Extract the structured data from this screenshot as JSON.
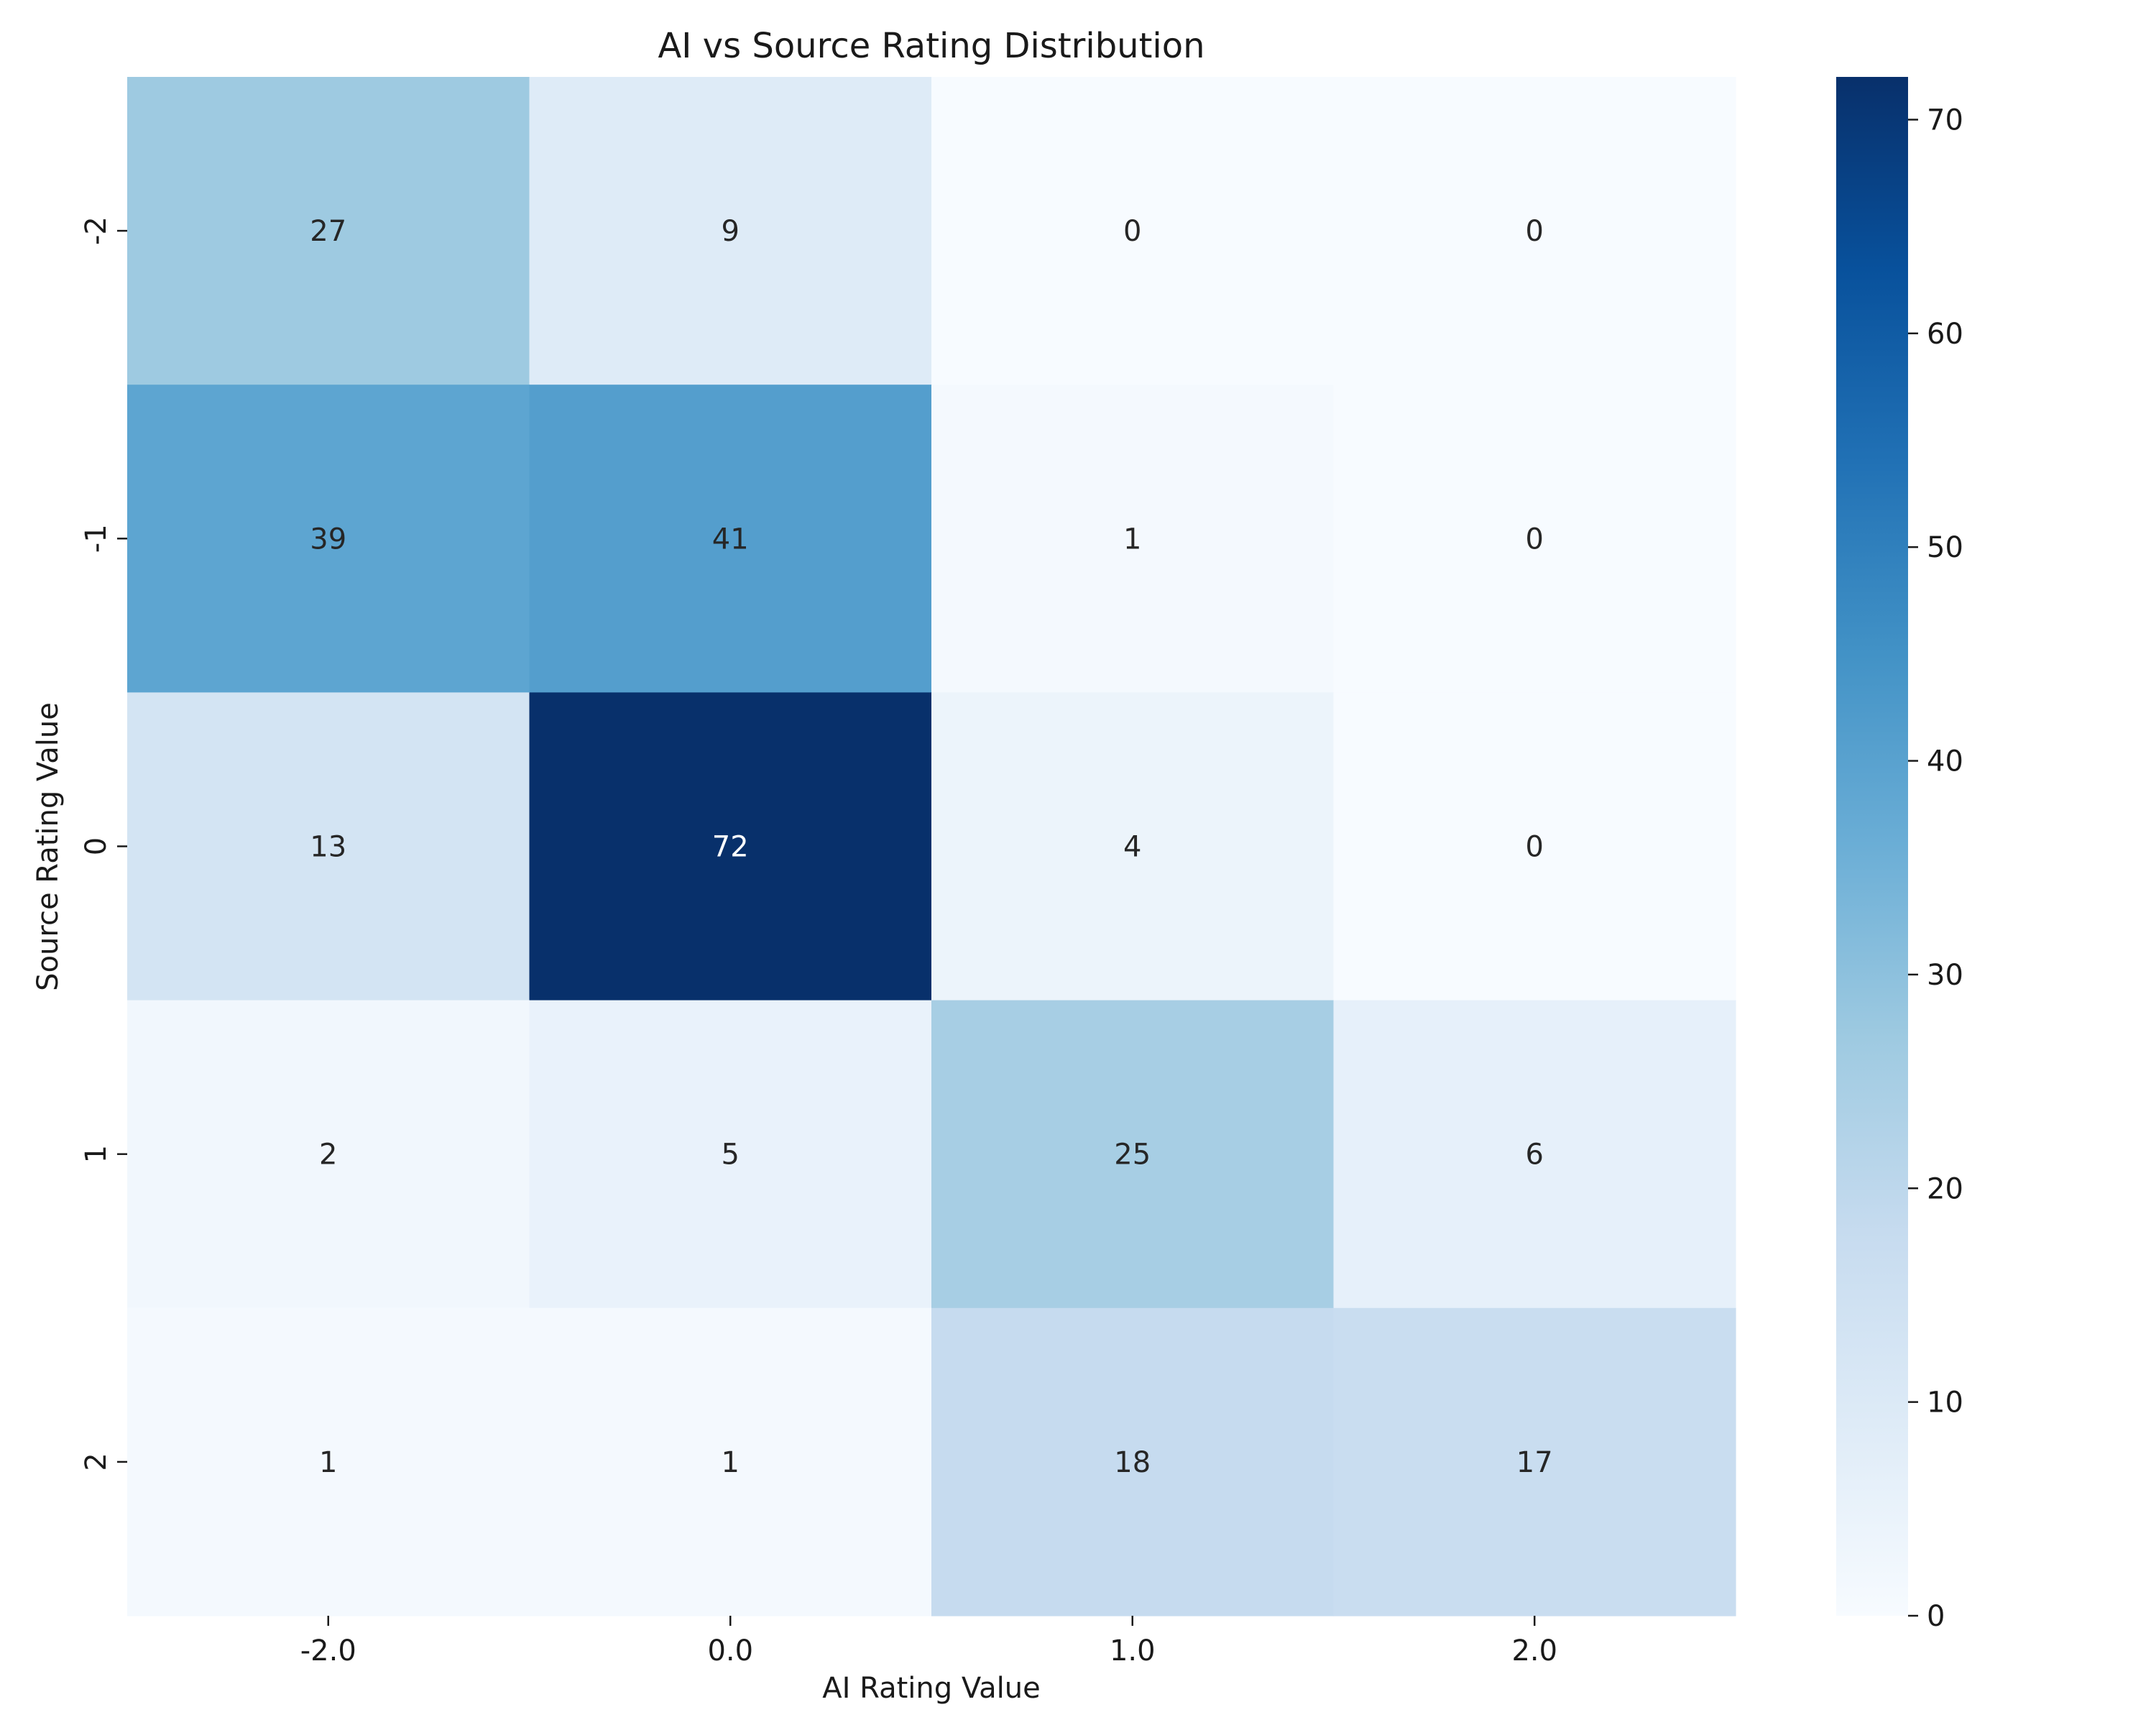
{
  "chart_data": {
    "type": "heatmap",
    "title": "AI vs Source Rating Distribution",
    "xlabel": "AI Rating Value",
    "ylabel": "Source Rating Value",
    "x_categories": [
      "-2.0",
      "0.0",
      "1.0",
      "2.0"
    ],
    "y_categories": [
      "-2",
      "-1",
      "0",
      "1",
      "2"
    ],
    "values": [
      [
        27,
        9,
        0,
        0
      ],
      [
        39,
        41,
        1,
        0
      ],
      [
        13,
        72,
        4,
        0
      ],
      [
        2,
        5,
        25,
        6
      ],
      [
        1,
        1,
        18,
        17
      ]
    ],
    "colorscale": "Blues",
    "colorbar": {
      "range": [
        0,
        72
      ],
      "ticks": [
        "0",
        "10",
        "20",
        "30",
        "40",
        "50",
        "60",
        "70"
      ]
    },
    "annotated": true,
    "grid": false
  }
}
